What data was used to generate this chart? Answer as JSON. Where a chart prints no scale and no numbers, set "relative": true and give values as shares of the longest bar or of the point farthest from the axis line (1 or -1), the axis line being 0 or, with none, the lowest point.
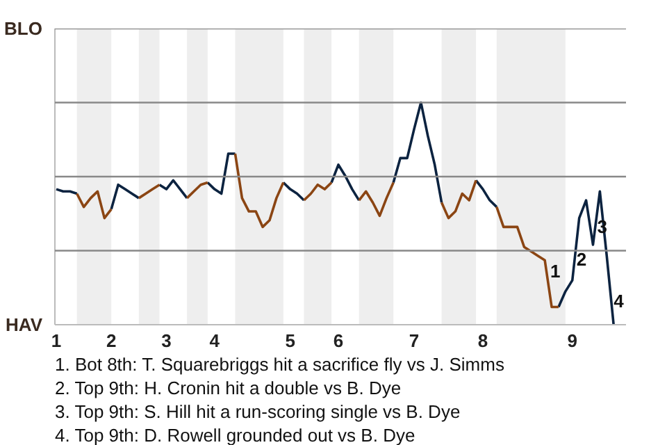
{
  "chart_data": {
    "type": "line",
    "relative": true,
    "categories": [
      "1",
      null,
      null,
      null,
      null,
      null,
      null,
      null,
      "2",
      null,
      null,
      null,
      null,
      null,
      null,
      null,
      "3",
      null,
      null,
      null,
      null,
      null,
      null,
      "4",
      null,
      null,
      null,
      null,
      null,
      null,
      null,
      null,
      null,
      null,
      "5",
      null,
      null,
      null,
      null,
      null,
      null,
      "6",
      null,
      null,
      null,
      null,
      null,
      null,
      null,
      null,
      null,
      null,
      "7",
      null,
      null,
      null,
      null,
      null,
      null,
      null,
      null,
      null,
      "8",
      null,
      null,
      null,
      null,
      null,
      null,
      null,
      null,
      null,
      null,
      null,
      null,
      "9",
      null,
      null,
      null,
      null,
      null,
      null
    ],
    "ref_lines": [
      {
        "axis": "y",
        "value": 0.3333,
        "color": "#888888"
      },
      {
        "axis": "y",
        "value": 0.6667,
        "color": "#888888"
      },
      {
        "axis": "y",
        "value": 1.0,
        "color": "#888888"
      },
      {
        "axis": "y",
        "value": 1.3333,
        "color": "#888888"
      }
    ],
    "series": [
      {
        "color": "#0c2340",
        "values": [
          0.61,
          0.6,
          0.6,
          0.59,
          null,
          null,
          null,
          null,
          0.52,
          0.63,
          0.61,
          0.59,
          0.57,
          null,
          null,
          0.63,
          0.61,
          0.65,
          0.61,
          0.57,
          null,
          null,
          0.64,
          0.61,
          0.59,
          0.77,
          0.77,
          null,
          null,
          null,
          null,
          null,
          null,
          0.64,
          0.61,
          0.59,
          0.56,
          null,
          null,
          null,
          0.64,
          0.72,
          0.67,
          0.61,
          0.56,
          null,
          null,
          null,
          null,
          0.64,
          0.75,
          0.75,
          0.88,
          1.0,
          0.85,
          0.72,
          0.55,
          null,
          null,
          null,
          null,
          0.65,
          0.61,
          0.56,
          0.53,
          null,
          null,
          null,
          null,
          null,
          null,
          null,
          null,
          0.08,
          0.15,
          0.2,
          0.48,
          0.56,
          0.36,
          0.6,
          0.31,
          0.0
        ]
      },
      {
        "color": "#8b4513",
        "values": [
          null,
          null,
          null,
          0.59,
          0.53,
          0.57,
          0.6,
          0.48,
          0.52,
          null,
          null,
          null,
          0.57,
          0.59,
          0.61,
          0.63,
          null,
          null,
          null,
          0.57,
          0.6,
          0.63,
          0.64,
          null,
          null,
          null,
          0.77,
          0.57,
          0.51,
          0.51,
          0.44,
          0.47,
          0.57,
          0.64,
          null,
          null,
          0.56,
          0.59,
          0.63,
          0.61,
          0.64,
          null,
          null,
          null,
          0.56,
          0.6,
          0.55,
          0.49,
          0.57,
          0.64,
          null,
          null,
          null,
          null,
          null,
          null,
          0.55,
          0.48,
          0.51,
          0.59,
          0.56,
          0.65,
          null,
          null,
          0.53,
          0.44,
          0.44,
          0.44,
          0.35,
          0.33,
          0.31,
          0.29,
          0.08,
          0.08,
          null,
          null,
          null,
          null,
          null,
          null,
          null,
          null
        ]
      }
    ],
    "annotations": [
      "BLO",
      "HAV",
      "1",
      "2",
      "3",
      "4",
      "1. Bot 8th: T. Squarebriggs hit a sacrifice fly vs J. Simms",
      "2. Top 9th: H. Cronin hit a double vs B. Dye",
      "3. Top 9th: S. Hill hit a run-scoring single vs B. Dye",
      "4. Top 9th: D. Rowell grounded out vs B. Dye"
    ]
  }
}
